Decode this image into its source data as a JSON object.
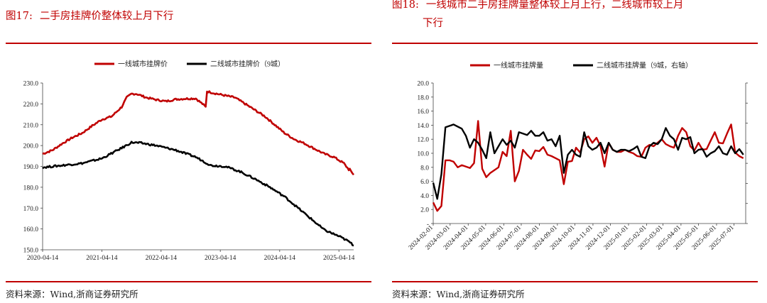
{
  "colors": {
    "accent": "#c00000",
    "series_red": "#c00000",
    "series_black": "#000000"
  },
  "left": {
    "figure_no": "图17:",
    "title": "二手房挂牌价整体较上月下行",
    "source": "资料来源：Wind,浙商证券研究所",
    "chart_data": {
      "type": "line",
      "title": "",
      "xlabel": "",
      "ylabel": "",
      "ylim": [
        150,
        230
      ],
      "xlim": [
        "2020-04-14",
        "2025-07-14"
      ],
      "y_ticks": [
        "230.0",
        "220.0",
        "210.0",
        "200.0",
        "190.0",
        "180.0",
        "170.0",
        "160.0",
        "150.0"
      ],
      "x_ticks": [
        "2020-04-14",
        "2021-04-14",
        "2022-04-14",
        "2023-04-14",
        "2024-04-14",
        "2025-04-14"
      ],
      "legend_position": "top-center",
      "series": [
        {
          "name": "一线城市挂牌价",
          "color": "#c00000",
          "points": [
            [
              "2020-04-14",
              196.0
            ],
            [
              "2020-06-14",
              197.8
            ],
            [
              "2020-08-14",
              201.0
            ],
            [
              "2020-10-14",
              203.8
            ],
            [
              "2020-12-14",
              206.0
            ],
            [
              "2021-02-14",
              209.5
            ],
            [
              "2021-04-14",
              212.5
            ],
            [
              "2021-06-14",
              214.0
            ],
            [
              "2021-08-14",
              218.5
            ],
            [
              "2021-09-14",
              223.0
            ],
            [
              "2021-10-14",
              224.8
            ],
            [
              "2021-11-14",
              224.8
            ],
            [
              "2022-01-14",
              223.0
            ],
            [
              "2022-03-14",
              222.0
            ],
            [
              "2022-05-14",
              221.2
            ],
            [
              "2022-07-14",
              222.2
            ],
            [
              "2022-09-14",
              222.5
            ],
            [
              "2022-11-14",
              222.6
            ],
            [
              "2022-12-25",
              220.0
            ],
            [
              "2023-01-14",
              218.5
            ],
            [
              "2023-01-22",
              226.0
            ],
            [
              "2023-03-14",
              225.0
            ],
            [
              "2023-05-14",
              224.0
            ],
            [
              "2023-07-14",
              223.0
            ],
            [
              "2023-09-14",
              220.0
            ],
            [
              "2023-11-14",
              217.0
            ],
            [
              "2024-01-14",
              214.0
            ],
            [
              "2024-03-14",
              210.0
            ],
            [
              "2024-05-14",
              206.0
            ],
            [
              "2024-07-14",
              203.0
            ],
            [
              "2024-09-14",
              201.0
            ],
            [
              "2024-11-14",
              198.5
            ],
            [
              "2025-01-14",
              196.0
            ],
            [
              "2025-03-14",
              194.5
            ],
            [
              "2025-05-14",
              191.5
            ],
            [
              "2025-06-14",
              188.5
            ],
            [
              "2025-06-20",
              188.5
            ],
            [
              "2025-07-14",
              186.0
            ]
          ]
        },
        {
          "name": "二线城市挂牌价（9城）",
          "color": "#000000",
          "points": [
            [
              "2020-04-14",
              189.5
            ],
            [
              "2020-08-14",
              190.5
            ],
            [
              "2020-12-14",
              191.5
            ],
            [
              "2021-04-14",
              193.8
            ],
            [
              "2021-08-14",
              198.8
            ],
            [
              "2021-10-14",
              201.5
            ],
            [
              "2021-12-14",
              201.2
            ],
            [
              "2022-03-14",
              200.0
            ],
            [
              "2022-07-14",
              197.8
            ],
            [
              "2022-11-14",
              194.5
            ],
            [
              "2023-02-14",
              190.5
            ],
            [
              "2023-05-14",
              190.0
            ],
            [
              "2023-08-14",
              187.5
            ],
            [
              "2023-11-14",
              184.0
            ],
            [
              "2024-02-14",
              180.0
            ],
            [
              "2024-05-14",
              175.5
            ],
            [
              "2024-08-14",
              169.5
            ],
            [
              "2024-11-14",
              163.5
            ],
            [
              "2025-01-14",
              159.5
            ],
            [
              "2025-04-14",
              156.5
            ],
            [
              "2025-06-14",
              154.0
            ],
            [
              "2025-07-14",
              152.0
            ]
          ]
        }
      ]
    }
  },
  "right": {
    "figure_no": "图18:",
    "title": "一线城市二手房挂牌量整体较上月上行，二线城市较上月",
    "title_line2": "下行",
    "source": "资料来源：Wind,浙商证券研究所",
    "chart_data": {
      "type": "line",
      "title": "",
      "xlabel": "",
      "ylabel": "",
      "ylim": [
        0,
        20
      ],
      "ylim_right": [
        0,
        20
      ],
      "xlim": [
        "2024-02-01",
        "2025-07-21"
      ],
      "y_ticks": [
        "20.0",
        "18.0",
        "16.0",
        "14.0",
        "12.0",
        "10.0",
        "8.0",
        "6.0",
        "4.0",
        "2.0",
        "-"
      ],
      "x_ticks": [
        "2024-02-01",
        "2024-03-01",
        "2024-04-01",
        "2024-05-01",
        "2024-06-01",
        "2024-07-01",
        "2024-08-01",
        "2024-09-01",
        "2024-10-01",
        "2024-11-01",
        "2024-12-01",
        "2025-01-01",
        "2025-02-01",
        "2025-03-01",
        "2025-04-01",
        "2025-05-01",
        "2025-06-01",
        "2025-07-01"
      ],
      "legend_position": "top-center",
      "series": [
        {
          "name": "一线城市挂牌量",
          "color": "#c00000",
          "x_start": "2024-02-01",
          "x_step_days": 7,
          "values": [
            3.0,
            1.8,
            2.5,
            9.0,
            9.0,
            8.8,
            8.0,
            8.3,
            8.1,
            7.9,
            8.6,
            14.6,
            7.8,
            6.6,
            7.2,
            7.6,
            8.0,
            10.2,
            9.6,
            13.2,
            6.0,
            7.5,
            10.5,
            9.8,
            9.2,
            10.4,
            10.3,
            10.9,
            9.8,
            9.6,
            9.3,
            9.0,
            5.6,
            8.8,
            8.9,
            10.8,
            10.1,
            12.0,
            12.4,
            11.5,
            12.2,
            11.0,
            8.1,
            11.5,
            10.5,
            10.2,
            10.2,
            10.5,
            10.2,
            10.0,
            9.6,
            9.5,
            10.8,
            11.2,
            11.0,
            11.5,
            12.0,
            11.3,
            11.0,
            10.8,
            12.5,
            13.6,
            13.0,
            11.0,
            10.4,
            11.5,
            10.5,
            10.6,
            11.8,
            13.0,
            11.5,
            11.4,
            12.8,
            14.1,
            10.1,
            9.6,
            9.3
          ]
        },
        {
          "name": "二线城市挂牌量（9城，右轴）",
          "color": "#000000",
          "x_start": "2024-02-01",
          "x_step_days": 7,
          "values": [
            5.8,
            3.5,
            7.0,
            13.7,
            13.9,
            14.1,
            13.8,
            13.5,
            12.5,
            10.8,
            12.0,
            11.5,
            10.5,
            9.3,
            13.0,
            10.0,
            11.0,
            12.0,
            11.2,
            11.8,
            10.8,
            13.0,
            12.8,
            12.6,
            13.2,
            12.5,
            12.5,
            13.0,
            11.8,
            12.0,
            11.0,
            12.5,
            7.2,
            9.8,
            10.5,
            9.8,
            9.5,
            13.0,
            11.0,
            10.5,
            10.8,
            11.5,
            10.0,
            11.5,
            10.5,
            10.2,
            10.5,
            10.5,
            10.3,
            10.6,
            11.0,
            9.5,
            9.3,
            11.0,
            11.5,
            11.3,
            12.0,
            13.6,
            12.5,
            12.0,
            10.5,
            12.2,
            12.0,
            12.3,
            10.0,
            10.5,
            10.6,
            9.5,
            10.0,
            10.3,
            11.0,
            10.0,
            9.8,
            11.0,
            10.0,
            10.6,
            9.8
          ]
        }
      ]
    }
  }
}
